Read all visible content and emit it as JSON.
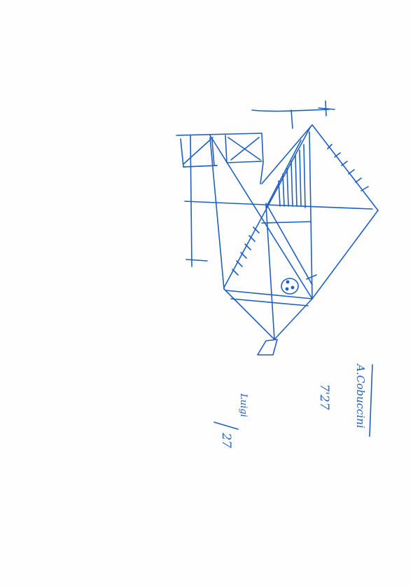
{
  "colors": {
    "paper": "#fefefe",
    "ink": "#1f5fc4"
  },
  "annotations": {
    "name": "A.Cobuccini",
    "time": "7'27",
    "fraction_numerator": "Luigi",
    "fraction_denominator": "27"
  }
}
